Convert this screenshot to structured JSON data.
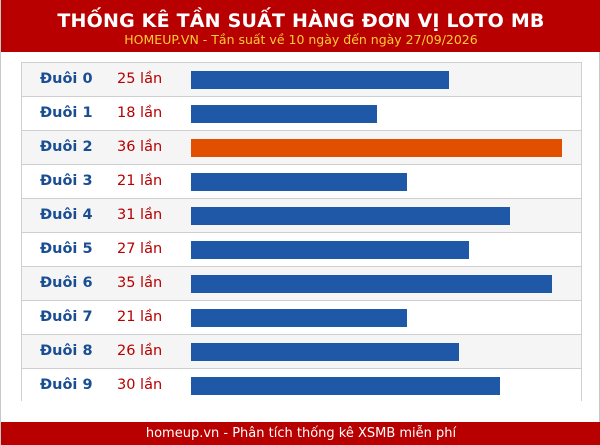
{
  "header": {
    "title": "THỐNG KÊ TẦN SUẤT HÀNG ĐƠN VỊ LOTO MB",
    "subtitle": "HOMEUP.VN - Tần suất về 10 ngày đến ngày 27/09/2026"
  },
  "footer": {
    "text": "homeup.vn - Phân tích thống kê XSMB miễn phí"
  },
  "colors": {
    "header_bg": "#b80000",
    "bar": "#1f58a6",
    "bar_max": "#e05000",
    "label": "#1a4e93",
    "count": "#b80000",
    "subtitle": "#ffcc33"
  },
  "chart_data": {
    "type": "bar",
    "orientation": "horizontal",
    "title": "THỐNG KÊ TẦN SUẤT HÀNG ĐƠN VỊ LOTO MB",
    "subtitle": "HOMEUP.VN - Tần suất về 10 ngày đến ngày 27/09/2026",
    "categories": [
      "Đuôi 0",
      "Đuôi 1",
      "Đuôi 2",
      "Đuôi 3",
      "Đuôi 4",
      "Đuôi 5",
      "Đuôi 6",
      "Đuôi 7",
      "Đuôi 8",
      "Đuôi 9"
    ],
    "values": [
      25,
      18,
      36,
      21,
      31,
      27,
      35,
      21,
      26,
      30
    ],
    "value_labels": [
      "25 lần",
      "18 lần",
      "36 lần",
      "21 lần",
      "31 lần",
      "27 lần",
      "35 lần",
      "21 lần",
      "26 lần",
      "30 lần"
    ],
    "highlight_max": true,
    "grid": false
  }
}
